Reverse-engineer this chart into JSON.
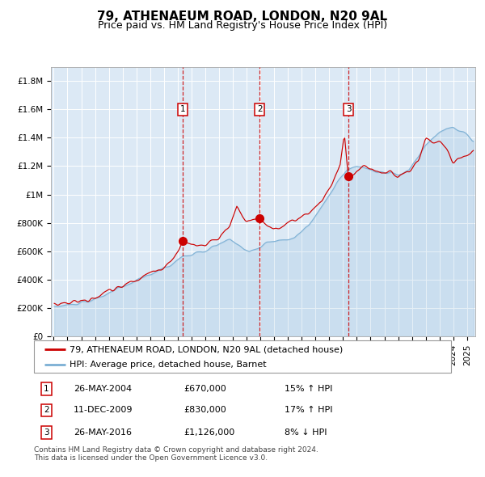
{
  "title": "79, ATHENAEUM ROAD, LONDON, N20 9AL",
  "subtitle": "Price paid vs. HM Land Registry's House Price Index (HPI)",
  "ylim": [
    0,
    1900000
  ],
  "yticks": [
    0,
    200000,
    400000,
    600000,
    800000,
    1000000,
    1200000,
    1400000,
    1600000,
    1800000
  ],
  "ytick_labels": [
    "£0",
    "£200K",
    "£400K",
    "£600K",
    "£800K",
    "£1M",
    "£1.2M",
    "£1.4M",
    "£1.6M",
    "£1.8M"
  ],
  "bg_color": "#dce9f5",
  "grid_color": "#ffffff",
  "hpi_color": "#7bafd4",
  "property_color": "#cc0000",
  "sale_dates": [
    2004.38,
    2009.94,
    2016.39
  ],
  "sale_prices": [
    670000,
    830000,
    1126000
  ],
  "sale_info": [
    [
      "1",
      "26-MAY-2004",
      "£670,000",
      "15% ↑ HPI"
    ],
    [
      "2",
      "11-DEC-2009",
      "£830,000",
      "17% ↑ HPI"
    ],
    [
      "3",
      "26-MAY-2016",
      "£1,126,000",
      "8% ↓ HPI"
    ]
  ],
  "legend_property": "79, ATHENAEUM ROAD, LONDON, N20 9AL (detached house)",
  "legend_hpi": "HPI: Average price, detached house, Barnet",
  "footer": "Contains HM Land Registry data © Crown copyright and database right 2024.\nThis data is licensed under the Open Government Licence v3.0.",
  "title_fontsize": 11,
  "subtitle_fontsize": 9,
  "tick_fontsize": 7.5,
  "legend_fontsize": 8,
  "footer_fontsize": 6.5
}
